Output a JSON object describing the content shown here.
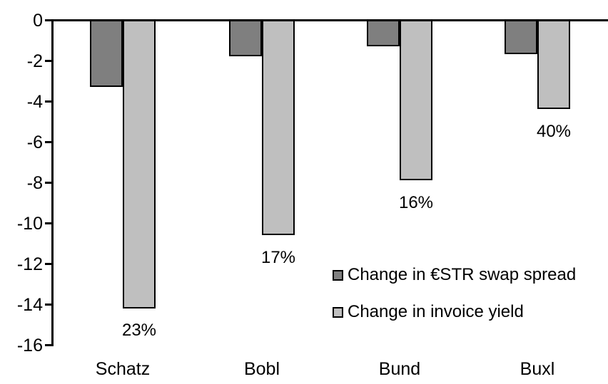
{
  "chart_data": {
    "type": "bar",
    "title": "",
    "xlabel": "",
    "ylabel": "",
    "categories": [
      "Schatz",
      "Bobl",
      "Bund",
      "Buxl"
    ],
    "series": [
      {
        "name": "Change in €STR swap spread",
        "key": "estr-swap-spread",
        "color": "#7f7f7f",
        "values": [
          -3.3,
          -1.8,
          -1.3,
          -1.7
        ]
      },
      {
        "name": "Change in invoice yield",
        "key": "invoice-yield",
        "color": "#bfbfbf",
        "values": [
          -14.2,
          -10.6,
          -7.9,
          -4.4
        ],
        "data_labels": [
          "23%",
          "17%",
          "16%",
          "40%"
        ]
      }
    ],
    "ylim": [
      -16,
      0
    ],
    "y_ticks": [
      0,
      -2,
      -4,
      -6,
      -8,
      -10,
      -12,
      -14,
      -16
    ],
    "grid": false,
    "legend_position": "inside-right",
    "bar_border_color": "#000000",
    "axis_color": "#000000",
    "background_color": "#ffffff"
  }
}
